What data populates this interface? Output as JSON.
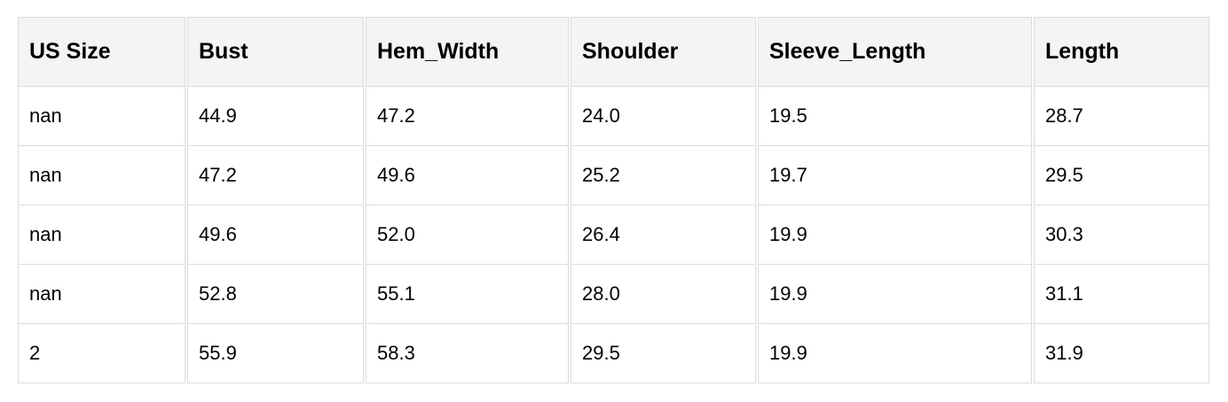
{
  "table": {
    "headers": [
      "US Size",
      "Bust",
      "Hem_Width",
      "Shoulder",
      "Sleeve_Length",
      "Length"
    ],
    "rows": [
      [
        "nan",
        "44.9",
        "47.2",
        "24.0",
        "19.5",
        "28.7"
      ],
      [
        "nan",
        "47.2",
        "49.6",
        "25.2",
        "19.7",
        "29.5"
      ],
      [
        "nan",
        "49.6",
        "52.0",
        "26.4",
        "19.9",
        "30.3"
      ],
      [
        "nan",
        "52.8",
        "55.1",
        "28.0",
        "19.9",
        "31.1"
      ],
      [
        "2",
        "55.9",
        "58.3",
        "29.5",
        "19.9",
        "31.9"
      ]
    ]
  }
}
